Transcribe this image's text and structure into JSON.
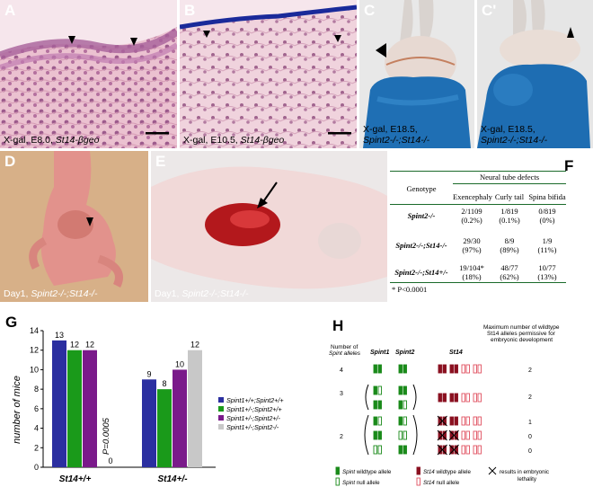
{
  "panels": {
    "A": {
      "label": "A",
      "caption_prefix": "X-gal, E8.0, ",
      "caption_gene": "St14-",
      "caption_suffix": "βgeo"
    },
    "B": {
      "label": "B",
      "caption_prefix": "X-gal, E10.5, ",
      "caption_gene": "St14-",
      "caption_suffix": "βgeo"
    },
    "C": {
      "label": "C",
      "caption_line1": "X-gal, E18.5,",
      "caption_line2": "Spint2-/-;St14-/-"
    },
    "C2": {
      "label": "C'",
      "caption_line1": "X-gal, E18.5,",
      "caption_line2": "Spint2-/-;St14-/-"
    },
    "D": {
      "label": "D",
      "caption_prefix": "Day1, ",
      "caption_genotype": "Spint2-/-;St14-/-"
    },
    "E": {
      "label": "E",
      "caption_prefix": "Day1, ",
      "caption_genotype": "Spint2-/-;St14-/-"
    },
    "F": {
      "label": "F"
    },
    "G": {
      "label": "G"
    },
    "H": {
      "label": "H"
    }
  },
  "table_f": {
    "group_header": "Neural tube defects",
    "col_genotype": "Genotype",
    "columns": [
      "Exencephaly",
      "Curly tail",
      "Spina bifida"
    ],
    "rows": [
      {
        "genotype": "Spint2-/-",
        "cells": [
          [
            "2/1109",
            "(0.2%)"
          ],
          [
            "1/819",
            "(0.1%)"
          ],
          [
            "0/819",
            "(0%)"
          ]
        ]
      },
      {
        "genotype": "Spint2-/-;St14-/-",
        "cells": [
          [
            "29/30",
            "(97%)"
          ],
          [
            "8/9",
            "(89%)"
          ],
          [
            "1/9",
            "(11%)"
          ]
        ]
      },
      {
        "genotype": "Spint2-/-;St14+/-",
        "cells": [
          [
            "19/104*",
            "(18%)"
          ],
          [
            "48/77",
            "(62%)"
          ],
          [
            "10/77",
            "(13%)"
          ]
        ]
      }
    ],
    "footnote": "* P<0.0001"
  },
  "chart_data": {
    "type": "bar",
    "ylabel": "number of mice",
    "ylim": [
      0,
      14
    ],
    "yticks": [
      0,
      2,
      4,
      6,
      8,
      10,
      12,
      14
    ],
    "groups": [
      "St14+/+",
      "St14+/-"
    ],
    "annotation": "P=0.0005",
    "zero_label": "0",
    "legend_position": "right",
    "series": [
      {
        "name": "Spint1+/+;Spint2+/+",
        "color": "#2b2fa0",
        "values": [
          13,
          9
        ]
      },
      {
        "name": "Spint1+/-;Spint2+/+",
        "color": "#1a9a1a",
        "values": [
          12,
          8
        ]
      },
      {
        "name": "Spint1+/-;Spint2+/-",
        "color": "#7a1a8a",
        "values": [
          12,
          10
        ]
      },
      {
        "name": "Spint1+/-;Spint2-/-",
        "color": "#c8c8c8",
        "values": [
          0,
          12
        ]
      }
    ]
  },
  "panel_h": {
    "row_header_line1": "Number of",
    "row_header_line2": "Spint alleles",
    "col_spint1": "Spint1",
    "col_spint2": "Spint2",
    "col_st14": "St14",
    "max_header_line1": "Maximum number of wildtype",
    "max_header_line2": "St14 alleles permissive for",
    "max_header_line3": "embryonic development",
    "rows": [
      {
        "alleles": "4",
        "max": "2"
      },
      {
        "alleles": "3",
        "max": "2"
      },
      {
        "alleles": "2",
        "max": [
          "1",
          "0",
          "0"
        ]
      }
    ],
    "legend": {
      "spint_wt": "Spint wildtype allele",
      "spint_null": "Spint null allele",
      "st14_wt": "St14 wildtype allele",
      "st14_null": "St14 null allele",
      "lethal_line1": "results in embryonic",
      "lethal_line2": "lethality"
    },
    "colors": {
      "spint": "#1a8a1a",
      "st14": "#8a1020",
      "st14_null": "#e05060"
    }
  }
}
